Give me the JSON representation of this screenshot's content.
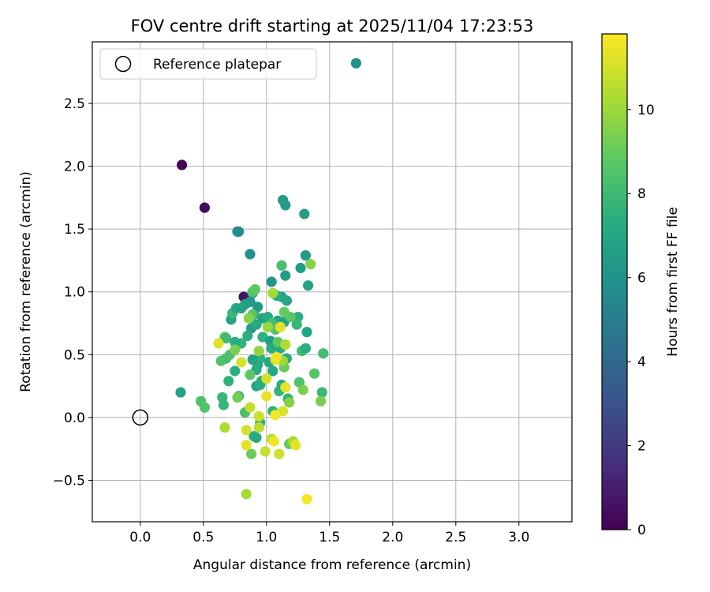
{
  "chart_data": {
    "type": "scatter",
    "title": "FOV centre drift starting at 2025/11/04 17:23:53",
    "xlabel": "Angular distance from reference (arcmin)",
    "ylabel": "Rotation from reference (arcmin)",
    "xlim": [
      -0.38,
      3.42
    ],
    "ylim": [
      -0.83,
      2.99
    ],
    "xticks": [
      0.0,
      0.5,
      1.0,
      1.5,
      2.0,
      2.5,
      3.0
    ],
    "xtick_labels": [
      "0.0",
      "0.5",
      "1.0",
      "1.5",
      "2.0",
      "2.5",
      "3.0"
    ],
    "yticks": [
      -0.5,
      0.0,
      0.5,
      1.0,
      1.5,
      2.0,
      2.5
    ],
    "ytick_labels": [
      "−0.5",
      "0.0",
      "0.5",
      "1.0",
      "1.5",
      "2.0",
      "2.5"
    ],
    "grid": true,
    "legend": {
      "location": "upper-left",
      "entries": [
        "Reference platepar"
      ]
    },
    "reference_point": {
      "x": 0.0,
      "y": 0.0,
      "label": "Reference platepar"
    },
    "colorbar": {
      "label": "Hours from first FF file",
      "range": [
        0,
        11.8
      ],
      "ticks": [
        0,
        2,
        4,
        6,
        8,
        10
      ],
      "tick_labels": [
        "0",
        "2",
        "4",
        "6",
        "8",
        "10"
      ],
      "colormap": "viridis"
    },
    "points": [
      {
        "x": 0.33,
        "y": 2.01,
        "h": 0.1
      },
      {
        "x": 0.51,
        "y": 1.67,
        "h": 0.4
      },
      {
        "x": 0.82,
        "y": 0.96,
        "h": 0.6
      },
      {
        "x": 1.71,
        "y": 2.82,
        "h": 5.9
      },
      {
        "x": 0.77,
        "y": 1.48,
        "h": 5.6
      },
      {
        "x": 0.78,
        "y": 1.48,
        "h": 5.7
      },
      {
        "x": 0.87,
        "y": 1.3,
        "h": 6.0
      },
      {
        "x": 1.13,
        "y": 1.73,
        "h": 6.3
      },
      {
        "x": 1.15,
        "y": 1.69,
        "h": 6.4
      },
      {
        "x": 1.3,
        "y": 1.62,
        "h": 6.5
      },
      {
        "x": 1.31,
        "y": 1.29,
        "h": 6.4
      },
      {
        "x": 1.27,
        "y": 1.19,
        "h": 6.5
      },
      {
        "x": 1.33,
        "y": 1.05,
        "h": 6.8
      },
      {
        "x": 1.15,
        "y": 1.13,
        "h": 6.5
      },
      {
        "x": 1.04,
        "y": 1.08,
        "h": 6.2
      },
      {
        "x": 0.32,
        "y": 0.2,
        "h": 6.7
      },
      {
        "x": 0.89,
        "y": 0.99,
        "h": 6.1
      },
      {
        "x": 0.87,
        "y": 0.92,
        "h": 6.3
      },
      {
        "x": 0.83,
        "y": 0.9,
        "h": 6.6
      },
      {
        "x": 0.8,
        "y": 0.87,
        "h": 6.9
      },
      {
        "x": 0.93,
        "y": 0.88,
        "h": 6.2
      },
      {
        "x": 0.9,
        "y": 0.82,
        "h": 6.4
      },
      {
        "x": 0.97,
        "y": 0.79,
        "h": 6.8
      },
      {
        "x": 1.01,
        "y": 0.8,
        "h": 7.2
      },
      {
        "x": 1.03,
        "y": 0.75,
        "h": 6.6
      },
      {
        "x": 1.09,
        "y": 0.77,
        "h": 7.0
      },
      {
        "x": 1.14,
        "y": 0.76,
        "h": 6.8
      },
      {
        "x": 1.25,
        "y": 0.8,
        "h": 7.3
      },
      {
        "x": 1.32,
        "y": 0.68,
        "h": 7.0
      },
      {
        "x": 1.12,
        "y": 0.96,
        "h": 6.7
      },
      {
        "x": 1.16,
        "y": 0.93,
        "h": 6.9
      },
      {
        "x": 1.08,
        "y": 0.97,
        "h": 7.3
      },
      {
        "x": 0.88,
        "y": 0.71,
        "h": 6.5
      },
      {
        "x": 0.92,
        "y": 0.74,
        "h": 7.1
      },
      {
        "x": 0.97,
        "y": 0.64,
        "h": 7.6
      },
      {
        "x": 1.03,
        "y": 0.61,
        "h": 6.6
      },
      {
        "x": 1.04,
        "y": 0.55,
        "h": 7.4
      },
      {
        "x": 1.07,
        "y": 0.58,
        "h": 7.0
      },
      {
        "x": 1.11,
        "y": 0.55,
        "h": 7.3
      },
      {
        "x": 1.16,
        "y": 0.47,
        "h": 7.2
      },
      {
        "x": 1.02,
        "y": 0.44,
        "h": 6.9
      },
      {
        "x": 0.95,
        "y": 0.47,
        "h": 7.5
      },
      {
        "x": 0.93,
        "y": 0.42,
        "h": 7.1
      },
      {
        "x": 0.89,
        "y": 0.46,
        "h": 6.8
      },
      {
        "x": 0.85,
        "y": 0.65,
        "h": 7.4
      },
      {
        "x": 0.8,
        "y": 0.59,
        "h": 7.7
      },
      {
        "x": 0.75,
        "y": 0.6,
        "h": 7.2
      },
      {
        "x": 0.72,
        "y": 0.78,
        "h": 6.7
      },
      {
        "x": 0.73,
        "y": 0.83,
        "h": 7.9
      },
      {
        "x": 0.76,
        "y": 0.87,
        "h": 7.0
      },
      {
        "x": 0.8,
        "y": 0.87,
        "h": 6.8
      },
      {
        "x": 0.92,
        "y": 0.38,
        "h": 7.2
      },
      {
        "x": 0.96,
        "y": 0.29,
        "h": 7.5
      },
      {
        "x": 1.05,
        "y": 0.37,
        "h": 7.0
      },
      {
        "x": 0.92,
        "y": 0.25,
        "h": 6.9
      },
      {
        "x": 0.95,
        "y": 0.26,
        "h": 7.3
      },
      {
        "x": 0.7,
        "y": 0.29,
        "h": 7.6
      },
      {
        "x": 0.65,
        "y": 0.16,
        "h": 7.8
      },
      {
        "x": 0.78,
        "y": 0.17,
        "h": 7.7
      },
      {
        "x": 0.75,
        "y": 0.37,
        "h": 7.4
      },
      {
        "x": 1.05,
        "y": 0.05,
        "h": 7.6
      },
      {
        "x": 1.1,
        "y": 0.21,
        "h": 7.7
      },
      {
        "x": 1.12,
        "y": 0.26,
        "h": 7.2
      },
      {
        "x": 0.9,
        "y": -0.15,
        "h": 7.4
      },
      {
        "x": 0.92,
        "y": -0.16,
        "h": 7.1
      },
      {
        "x": 0.95,
        "y": -0.04,
        "h": 7.6
      },
      {
        "x": 1.17,
        "y": 0.15,
        "h": 7.6
      },
      {
        "x": 1.24,
        "y": 0.74,
        "h": 7.8
      },
      {
        "x": 1.28,
        "y": 0.53,
        "h": 8.0
      },
      {
        "x": 1.31,
        "y": 0.55,
        "h": 7.4
      },
      {
        "x": 1.38,
        "y": 0.35,
        "h": 8.6
      },
      {
        "x": 1.44,
        "y": 0.2,
        "h": 7.9
      },
      {
        "x": 1.45,
        "y": 0.51,
        "h": 8.1
      },
      {
        "x": 1.26,
        "y": 0.28,
        "h": 8.4
      },
      {
        "x": 0.48,
        "y": 0.13,
        "h": 8.4
      },
      {
        "x": 0.51,
        "y": 0.08,
        "h": 8.5
      },
      {
        "x": 0.66,
        "y": 0.1,
        "h": 7.8
      },
      {
        "x": 0.68,
        "y": 0.47,
        "h": 8.2
      },
      {
        "x": 0.64,
        "y": 0.45,
        "h": 8.4
      },
      {
        "x": 0.67,
        "y": 0.64,
        "h": 8.6
      },
      {
        "x": 0.68,
        "y": 0.63,
        "h": 8.0
      },
      {
        "x": 0.71,
        "y": 0.5,
        "h": 8.4
      },
      {
        "x": 0.83,
        "y": 0.04,
        "h": 8.3
      },
      {
        "x": 0.87,
        "y": 0.34,
        "h": 8.8
      },
      {
        "x": 0.89,
        "y": 0.82,
        "h": 8.6
      },
      {
        "x": 0.89,
        "y": 1.0,
        "h": 8.5
      },
      {
        "x": 0.91,
        "y": 1.02,
        "h": 8.8
      },
      {
        "x": 1.04,
        "y": 0.75,
        "h": 8.2
      },
      {
        "x": 1.07,
        "y": 0.7,
        "h": 8.5
      },
      {
        "x": 1.09,
        "y": 0.6,
        "h": 8.8
      },
      {
        "x": 1.12,
        "y": 1.21,
        "h": 8.3
      },
      {
        "x": 1.19,
        "y": 0.8,
        "h": 8.7
      },
      {
        "x": 1.14,
        "y": 0.84,
        "h": 9.0
      },
      {
        "x": 1.14,
        "y": 0.4,
        "h": 9.0
      },
      {
        "x": 1.29,
        "y": 0.22,
        "h": 9.4
      },
      {
        "x": 1.35,
        "y": 1.22,
        "h": 9.6
      },
      {
        "x": 1.43,
        "y": 0.13,
        "h": 9.3
      },
      {
        "x": 1.18,
        "y": -0.21,
        "h": 8.9
      },
      {
        "x": 0.88,
        "y": -0.29,
        "h": 9.1
      },
      {
        "x": 0.67,
        "y": -0.08,
        "h": 10.3
      },
      {
        "x": 0.77,
        "y": 0.16,
        "h": 9.2
      },
      {
        "x": 0.75,
        "y": 0.54,
        "h": 9.4
      },
      {
        "x": 0.86,
        "y": 0.79,
        "h": 9.6
      },
      {
        "x": 0.94,
        "y": 0.53,
        "h": 9.8
      },
      {
        "x": 1.01,
        "y": 0.72,
        "h": 9.9
      },
      {
        "x": 1.05,
        "y": 0.99,
        "h": 10.1
      },
      {
        "x": 1.13,
        "y": 0.45,
        "h": 10.0
      },
      {
        "x": 1.15,
        "y": 0.58,
        "h": 10.4
      },
      {
        "x": 1.18,
        "y": 0.12,
        "h": 9.5
      },
      {
        "x": 1.21,
        "y": -0.19,
        "h": 10.2
      },
      {
        "x": 1.04,
        "y": -0.17,
        "h": 10.6
      },
      {
        "x": 0.99,
        "y": -0.27,
        "h": 10.8
      },
      {
        "x": 0.94,
        "y": -0.08,
        "h": 10.5
      },
      {
        "x": 0.94,
        "y": 0.01,
        "h": 10.9
      },
      {
        "x": 0.87,
        "y": 0.08,
        "h": 10.7
      },
      {
        "x": 0.84,
        "y": -0.1,
        "h": 11.0
      },
      {
        "x": 0.84,
        "y": -0.22,
        "h": 11.3
      },
      {
        "x": 0.84,
        "y": -0.61,
        "h": 10.2
      },
      {
        "x": 0.62,
        "y": 0.59,
        "h": 11.2
      },
      {
        "x": 0.8,
        "y": 0.44,
        "h": 11.1
      },
      {
        "x": 1.0,
        "y": 0.31,
        "h": 11.0
      },
      {
        "x": 1.0,
        "y": 0.17,
        "h": 11.4
      },
      {
        "x": 1.07,
        "y": 0.46,
        "h": 11.2
      },
      {
        "x": 1.08,
        "y": 0.48,
        "h": 11.5
      },
      {
        "x": 1.11,
        "y": 0.72,
        "h": 11.3
      },
      {
        "x": 1.13,
        "y": 0.05,
        "h": 11.1
      },
      {
        "x": 1.15,
        "y": 0.24,
        "h": 11.4
      },
      {
        "x": 1.07,
        "y": 0.02,
        "h": 11.6
      },
      {
        "x": 1.06,
        "y": -0.19,
        "h": 11.5
      },
      {
        "x": 1.1,
        "y": -0.29,
        "h": 10.9
      },
      {
        "x": 1.23,
        "y": -0.22,
        "h": 11.4
      },
      {
        "x": 1.32,
        "y": -0.65,
        "h": 11.6
      }
    ]
  }
}
